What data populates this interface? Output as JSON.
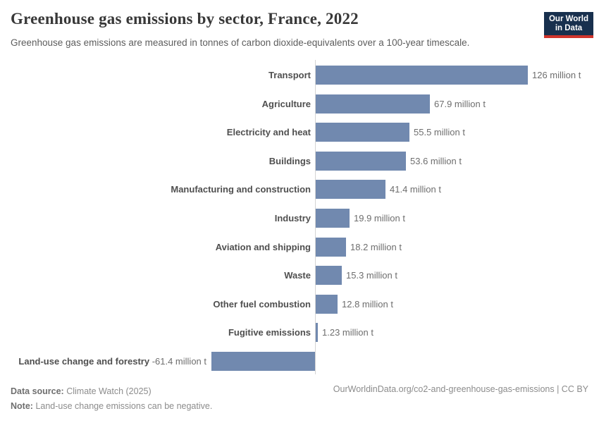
{
  "header": {
    "title": "Greenhouse gas emissions by sector, France, 2022",
    "subtitle": "Greenhouse gas emissions are measured in tonnes of carbon dioxide-equivalents over a 100-year timescale.",
    "logo_line1": "Our World",
    "logo_line2": "in Data"
  },
  "chart_data": {
    "type": "bar",
    "orientation": "horizontal",
    "title": "Greenhouse gas emissions by sector, France, 2022",
    "xlabel": "",
    "ylabel": "",
    "unit": "million t",
    "xlim": [
      -61.4,
      126
    ],
    "grid": false,
    "legend": false,
    "categories": [
      "Transport",
      "Agriculture",
      "Electricity and heat",
      "Buildings",
      "Manufacturing and construction",
      "Industry",
      "Aviation and shipping",
      "Waste",
      "Other fuel combustion",
      "Fugitive emissions",
      "Land-use change and forestry"
    ],
    "values": [
      126,
      67.9,
      55.5,
      53.6,
      41.4,
      19.9,
      18.2,
      15.3,
      12.8,
      1.23,
      -61.4
    ],
    "value_labels": [
      "126 million t",
      "67.9 million t",
      "55.5 million t",
      "53.6 million t",
      "41.4 million t",
      "19.9 million t",
      "18.2 million t",
      "15.3 million t",
      "12.8 million t",
      "1.23 million t",
      "-61.4 million t"
    ],
    "bar_color": "#7189af"
  },
  "footer": {
    "source_label": "Data source:",
    "source_text": "Climate Watch (2025)",
    "note_label": "Note:",
    "note_text": "Land-use change emissions can be negative.",
    "attribution": "OurWorldinData.org/co2-and-greenhouse-gas-emissions | CC BY"
  },
  "colors": {
    "bar": "#7189af",
    "logo_background": "#18304e",
    "logo_stripe": "#d0342c",
    "axis_line": "#d4d4d4"
  }
}
